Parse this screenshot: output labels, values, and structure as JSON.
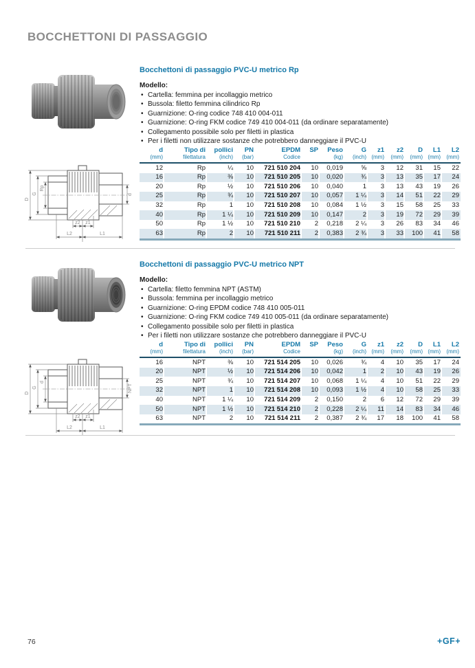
{
  "page": {
    "title": "BOCCHETTONI DI PASSAGGIO",
    "page_number": "76",
    "logo": "+GF+"
  },
  "colors": {
    "accent_blue": "#1478a8",
    "header_rule": "#1d4f68",
    "table_bottom_rule": "#86a9ba",
    "row_shade": "#dce7ee",
    "title_gray": "#8d8d8d"
  },
  "sections": [
    {
      "title": "Bocchettoni di passaggio PVC-U metrico Rp",
      "model_label": "Modello:",
      "bullets": [
        "Cartella: femmina per incollaggio metrico",
        "Bussola: filetto femmina cilindrico Rp",
        "Guarnizione: O-ring codice 748 410 004-011",
        "Guarnizione: O-ring FKM codice 749 410 004-011 (da ordinare separatamente)",
        "Collegamento possibile solo per filetti in plastica",
        "Per i filetti non utilizzare sostanze che potrebbero danneggiare il PVC-U"
      ],
      "drawing": {
        "left": [
          "D",
          "G",
          "Rp"
        ],
        "right": "d",
        "z2": "z2",
        "z1": "z1",
        "L2": "L2",
        "L1": "L1"
      },
      "table": {
        "columns": [
          {
            "l1": "d",
            "l2": "(mm)"
          },
          {
            "l1": "Tipo di",
            "l2": "filettatura"
          },
          {
            "l1": "pollici",
            "l2": "(inch)"
          },
          {
            "l1": "PN",
            "l2": "(bar)"
          },
          {
            "l1": "EPDM",
            "l2": "Codice"
          },
          {
            "l1": "SP",
            "l2": ""
          },
          {
            "l1": "Peso",
            "l2": "(kg)"
          },
          {
            "l1": "G",
            "l2": "(inch)"
          },
          {
            "l1": "z1",
            "l2": "(mm)"
          },
          {
            "l1": "z2",
            "l2": "(mm)"
          },
          {
            "l1": "D",
            "l2": "(mm)"
          },
          {
            "l1": "L1",
            "l2": "(mm)"
          },
          {
            "l1": "L2",
            "l2": "(mm)"
          }
        ],
        "rows": [
          [
            "12",
            "Rp",
            "¼",
            "10",
            "721 510 204",
            "10",
            "0,019",
            "⅝",
            "3",
            "12",
            "31",
            "15",
            "22"
          ],
          [
            "16",
            "Rp",
            "⅜",
            "10",
            "721 510 205",
            "10",
            "0,020",
            "¾",
            "3",
            "13",
            "35",
            "17",
            "24"
          ],
          [
            "20",
            "Rp",
            "½",
            "10",
            "721 510 206",
            "10",
            "0,040",
            "1",
            "3",
            "13",
            "43",
            "19",
            "26"
          ],
          [
            "25",
            "Rp",
            "¾",
            "10",
            "721 510 207",
            "10",
            "0,057",
            "1 ¼",
            "3",
            "14",
            "51",
            "22",
            "29"
          ],
          [
            "32",
            "Rp",
            "1",
            "10",
            "721 510 208",
            "10",
            "0,084",
            "1 ½",
            "3",
            "15",
            "58",
            "25",
            "33"
          ],
          [
            "40",
            "Rp",
            "1 ¼",
            "10",
            "721 510 209",
            "10",
            "0,147",
            "2",
            "3",
            "19",
            "72",
            "29",
            "39"
          ],
          [
            "50",
            "Rp",
            "1 ½",
            "10",
            "721 510 210",
            "2",
            "0,218",
            "2 ¼",
            "3",
            "26",
            "83",
            "34",
            "46"
          ],
          [
            "63",
            "Rp",
            "2",
            "10",
            "721 510 211",
            "2",
            "0,383",
            "2 ¾",
            "3",
            "33",
            "100",
            "41",
            "58"
          ]
        ]
      }
    },
    {
      "title": "Bocchettoni di passaggio PVC-U metrico NPT",
      "model_label": "Modello:",
      "bullets": [
        "Cartella: filetto femmina NPT (ASTM)",
        "Bussola: femmina per incollaggio metrico",
        "Guarnizione: O-ring EPDM codice 748 410 005-011",
        "Guarnizione: O-ring FKM codice 749 410 005-011 (da ordinare separatamente)",
        "Collegamento possibile solo per filetti in plastica",
        "Per i filetti non utilizzare sostanze che potrebbero danneggiare il PVC-U"
      ],
      "drawing": {
        "left": [
          "D",
          "G",
          "d"
        ],
        "right": "NPT",
        "z2": "z2",
        "z1": "z1",
        "L2": "L2",
        "L1": "L1"
      },
      "table": {
        "columns": [
          {
            "l1": "d",
            "l2": "(mm)"
          },
          {
            "l1": "Tipo di",
            "l2": "filettatura"
          },
          {
            "l1": "pollici",
            "l2": "(inch)"
          },
          {
            "l1": "PN",
            "l2": "(bar)"
          },
          {
            "l1": "EPDM",
            "l2": "Codice"
          },
          {
            "l1": "SP",
            "l2": ""
          },
          {
            "l1": "Peso",
            "l2": "(kg)"
          },
          {
            "l1": "G",
            "l2": "(inch)"
          },
          {
            "l1": "z1",
            "l2": "(mm)"
          },
          {
            "l1": "z2",
            "l2": "(mm)"
          },
          {
            "l1": "D",
            "l2": "(mm)"
          },
          {
            "l1": "L1",
            "l2": "(mm)"
          },
          {
            "l1": "L2",
            "l2": "(mm)"
          }
        ],
        "rows": [
          [
            "16",
            "NPT",
            "⅜",
            "10",
            "721 514 205",
            "10",
            "0,026",
            "¾",
            "4",
            "10",
            "35",
            "17",
            "24"
          ],
          [
            "20",
            "NPT",
            "½",
            "10",
            "721 514 206",
            "10",
            "0,042",
            "1",
            "2",
            "10",
            "43",
            "19",
            "26"
          ],
          [
            "25",
            "NPT",
            "¾",
            "10",
            "721 514 207",
            "10",
            "0,068",
            "1 ¼",
            "4",
            "10",
            "51",
            "22",
            "29"
          ],
          [
            "32",
            "NPT",
            "1",
            "10",
            "721 514 208",
            "10",
            "0,093",
            "1 ½",
            "4",
            "10",
            "58",
            "25",
            "33"
          ],
          [
            "40",
            "NPT",
            "1 ¼",
            "10",
            "721 514 209",
            "2",
            "0,150",
            "2",
            "6",
            "12",
            "72",
            "29",
            "39"
          ],
          [
            "50",
            "NPT",
            "1 ½",
            "10",
            "721 514 210",
            "2",
            "0,228",
            "2 ¼",
            "11",
            "14",
            "83",
            "34",
            "46"
          ],
          [
            "63",
            "NPT",
            "2",
            "10",
            "721 514 211",
            "2",
            "0,387",
            "2 ¾",
            "17",
            "18",
            "100",
            "41",
            "58"
          ]
        ]
      }
    }
  ]
}
